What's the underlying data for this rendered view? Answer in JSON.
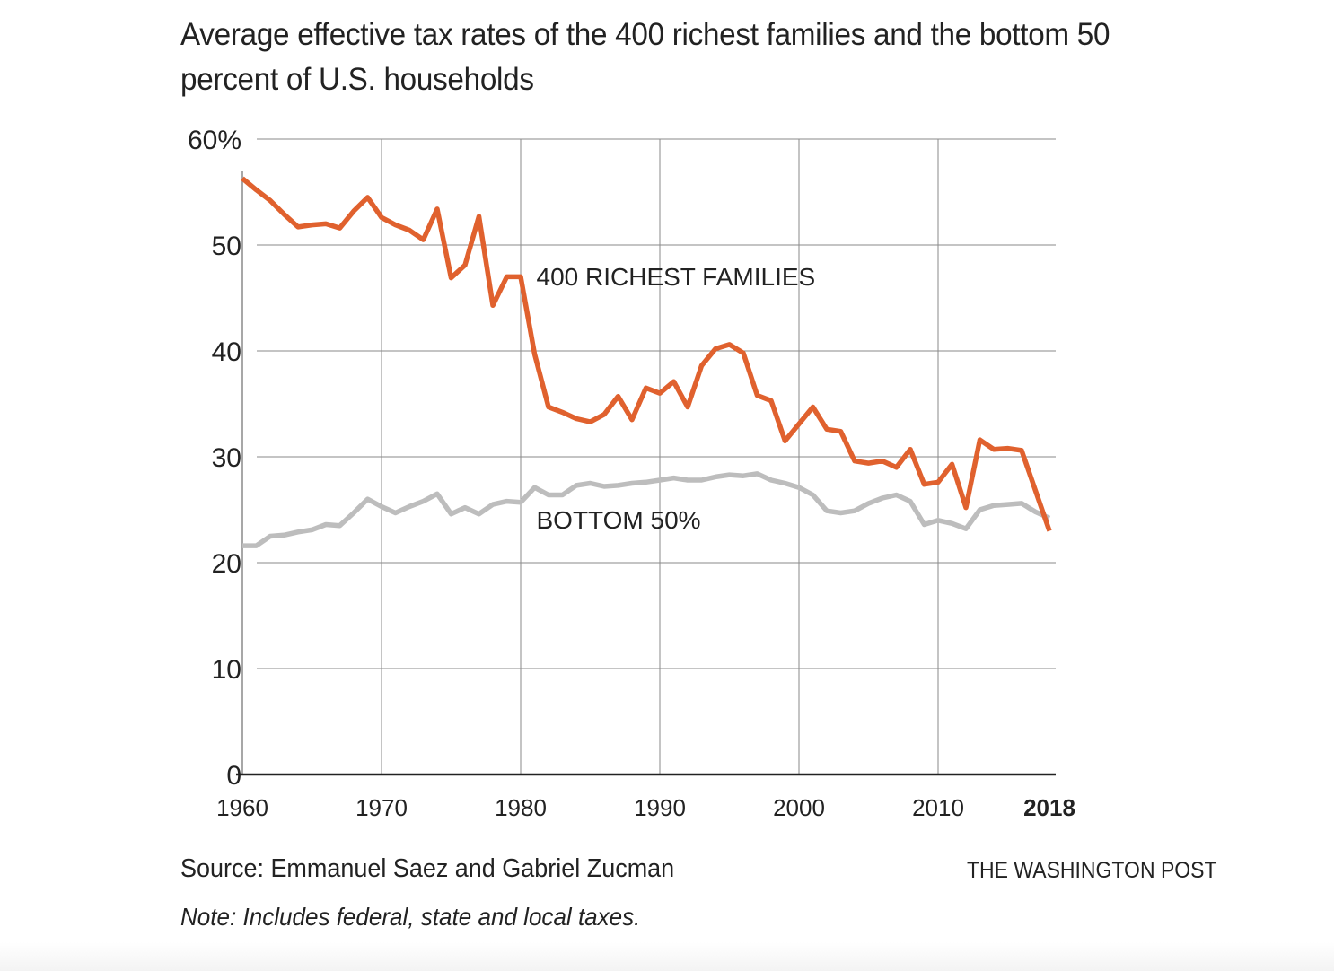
{
  "header": {
    "title": "Average effective tax rates of the 400 richest families and the bottom 50 percent of U.S. households"
  },
  "footer": {
    "source": "Source: Emmanuel Saez and Gabriel Zucman",
    "note": "Note: Includes federal, state and local taxes.",
    "brand": "THE WASHINGTON POST"
  },
  "chart_data": {
    "type": "line",
    "title": "Average effective tax rates of the 400 richest families and the bottom 50 percent of U.S. households",
    "xlabel": "",
    "ylabel": "",
    "xlim": [
      1960,
      2018
    ],
    "ylim": [
      0,
      60
    ],
    "grid": true,
    "legend": "inline-labels",
    "x_ticks": [
      {
        "value": 1960,
        "label": "1960",
        "bold": false
      },
      {
        "value": 1970,
        "label": "1970",
        "bold": false
      },
      {
        "value": 1980,
        "label": "1980",
        "bold": false
      },
      {
        "value": 1990,
        "label": "1990",
        "bold": false
      },
      {
        "value": 2000,
        "label": "2000",
        "bold": false
      },
      {
        "value": 2010,
        "label": "2010",
        "bold": false
      },
      {
        "value": 2018,
        "label": "2018",
        "bold": true
      }
    ],
    "y_ticks": [
      {
        "value": 0,
        "label": "0"
      },
      {
        "value": 10,
        "label": "10"
      },
      {
        "value": 20,
        "label": "20"
      },
      {
        "value": 30,
        "label": "30"
      },
      {
        "value": 40,
        "label": "40"
      },
      {
        "value": 50,
        "label": "50"
      },
      {
        "value": 60,
        "label": "60%"
      }
    ],
    "x": [
      1960,
      1961,
      1962,
      1963,
      1964,
      1965,
      1966,
      1967,
      1968,
      1969,
      1970,
      1971,
      1972,
      1973,
      1974,
      1975,
      1976,
      1977,
      1978,
      1979,
      1980,
      1981,
      1982,
      1983,
      1984,
      1985,
      1986,
      1987,
      1988,
      1989,
      1990,
      1991,
      1992,
      1993,
      1994,
      1995,
      1996,
      1997,
      1998,
      1999,
      2000,
      2001,
      2002,
      2003,
      2004,
      2005,
      2006,
      2007,
      2008,
      2009,
      2010,
      2011,
      2012,
      2013,
      2014,
      2015,
      2016,
      2017,
      2018
    ],
    "series": [
      {
        "name": "400 RICHEST FAMILIES",
        "color": "#e0612e",
        "label_anchor_year": 1981,
        "label_anchor_value": 46.2,
        "values": [
          56.3,
          55.2,
          54.2,
          52.9,
          51.7,
          51.9,
          52.0,
          51.6,
          53.2,
          54.5,
          52.6,
          51.9,
          51.4,
          50.5,
          53.4,
          46.9,
          48.1,
          52.7,
          44.3,
          47.0,
          47.0,
          39.7,
          34.7,
          34.2,
          33.6,
          33.3,
          34.0,
          35.7,
          33.5,
          36.5,
          36.0,
          37.1,
          34.7,
          38.6,
          40.2,
          40.6,
          39.8,
          35.8,
          35.3,
          31.5,
          33.1,
          34.7,
          32.6,
          32.4,
          29.6,
          29.4,
          29.6,
          29.0,
          30.7,
          27.4,
          27.6,
          29.3,
          25.2,
          31.6,
          30.7,
          30.8,
          30.6,
          26.8,
          23.0
        ]
      },
      {
        "name": "BOTTOM 50%",
        "color": "#bdbdbd",
        "label_anchor_year": 1981,
        "label_anchor_value": 23.2,
        "values": [
          21.6,
          21.6,
          22.5,
          22.6,
          22.9,
          23.1,
          23.6,
          23.5,
          24.7,
          26.0,
          25.3,
          24.7,
          25.3,
          25.8,
          26.5,
          24.6,
          25.2,
          24.6,
          25.5,
          25.8,
          25.7,
          27.1,
          26.4,
          26.4,
          27.3,
          27.5,
          27.2,
          27.3,
          27.5,
          27.6,
          27.8,
          28.0,
          27.8,
          27.8,
          28.1,
          28.3,
          28.2,
          28.4,
          27.8,
          27.5,
          27.1,
          26.4,
          24.9,
          24.7,
          24.9,
          25.6,
          26.1,
          26.4,
          25.8,
          23.6,
          24.0,
          23.7,
          23.2,
          25.0,
          25.4,
          25.5,
          25.6,
          24.8,
          24.2
        ]
      }
    ]
  }
}
